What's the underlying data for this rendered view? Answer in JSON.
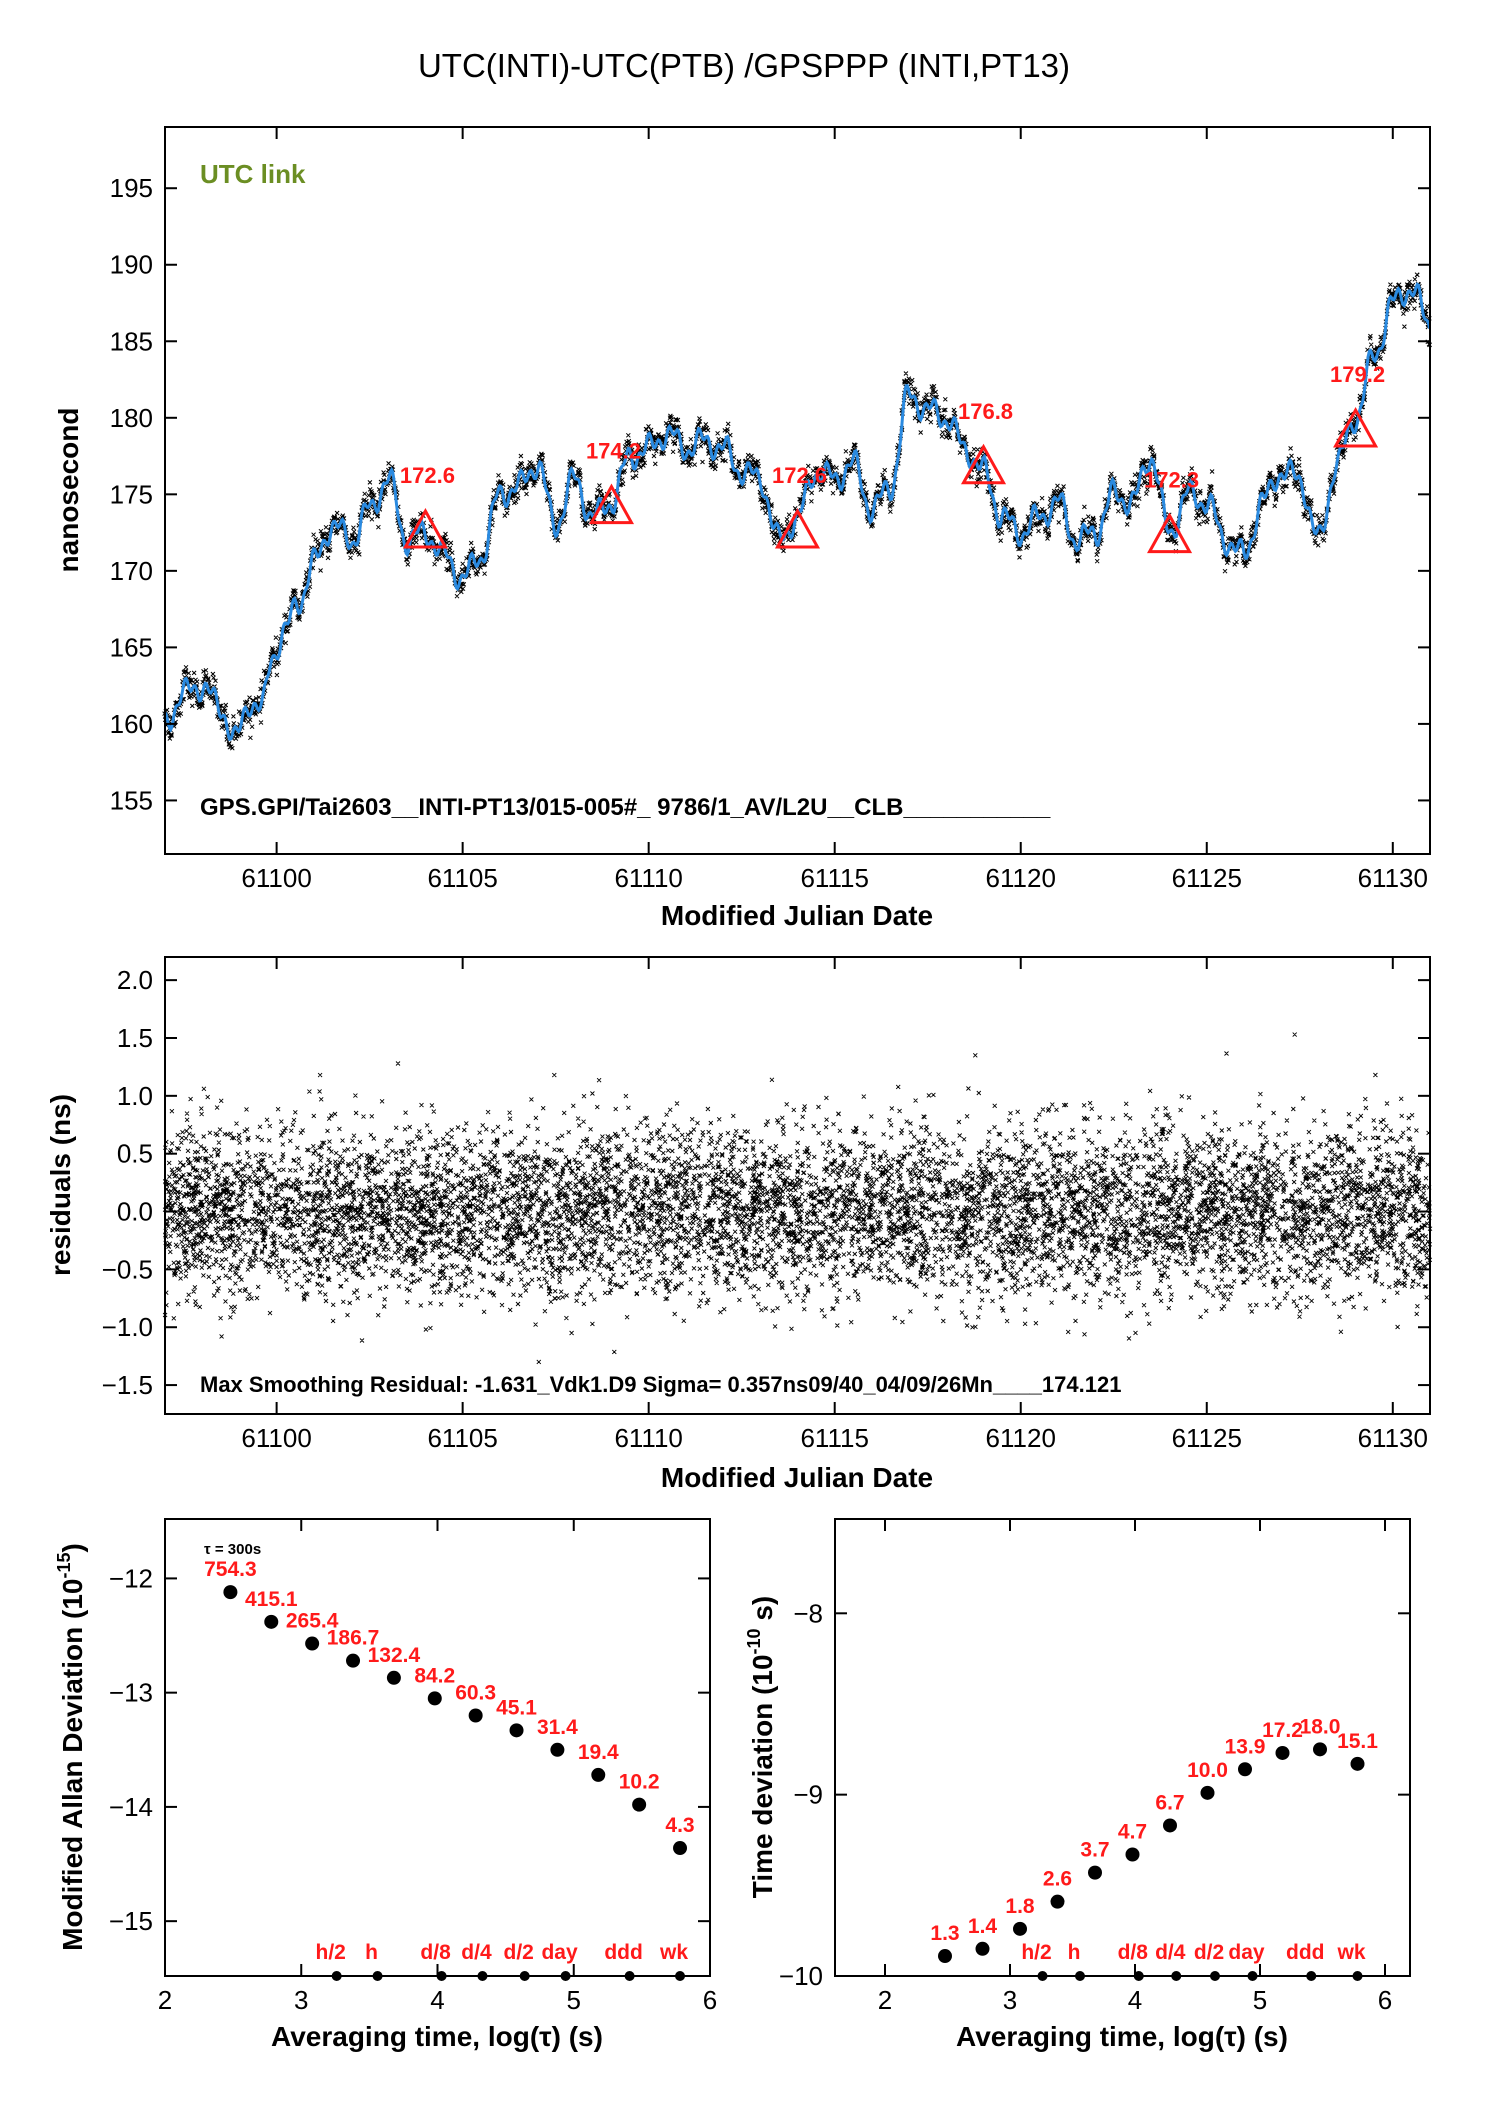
{
  "title": "UTC(INTI)-UTC(PTB)  /GPSPPP  (INTI,PT13)",
  "chart_data": [
    {
      "id": "timeseries",
      "type": "line",
      "label": "UTC link",
      "xlabel": "Modified Julian Date",
      "ylabel": "nanosecond",
      "xlim": [
        61097,
        61131
      ],
      "ylim": [
        151.5,
        199
      ],
      "xticks": [
        61100,
        61105,
        61110,
        61115,
        61120,
        61125,
        61130
      ],
      "yticks": [
        155,
        160,
        165,
        170,
        175,
        180,
        185,
        190,
        195
      ],
      "annotation": "GPS.GPI/Tai2603__INTI-PT13/015-005#_  9786/1_AV/L2U__CLB___________",
      "smoothed_line_color": "#2a8ae0",
      "raw_point_color": "#000000",
      "marker_color": "#ff1a1a",
      "series": [
        {
          "name": "smoothed",
          "x": [
            61097.0,
            61097.5,
            61098.0,
            61098.5,
            61098.9,
            61099.3,
            61099.6,
            61099.9,
            61100.2,
            61100.6,
            61101.0,
            61101.5,
            61102.0,
            61102.5,
            61103.0,
            61103.5,
            61104.0,
            61104.5,
            61105.0,
            61105.5,
            61106.0,
            61106.5,
            61107.0,
            61107.5,
            61108.0,
            61108.5,
            61109.0,
            61109.5,
            61110.0,
            61110.5,
            61111.0,
            61111.5,
            61112.0,
            61112.5,
            61113.0,
            61113.5,
            61114.0,
            61114.5,
            61115.0,
            61115.5,
            61116.0,
            61116.5,
            61117.0,
            61117.5,
            61118.0,
            61118.5,
            61119.0,
            61119.5,
            61120.0,
            61120.5,
            61121.0,
            61121.5,
            61122.0,
            61122.5,
            61123.0,
            61123.5,
            61124.0,
            61124.5,
            61125.0,
            61125.5,
            61126.0,
            61126.5,
            61127.0,
            61127.5,
            61128.0,
            61128.5,
            61129.0,
            61129.5,
            61130.0,
            61130.5,
            61131.0
          ],
          "y": [
            160.0,
            162.0,
            162.5,
            161.0,
            159.0,
            161.5,
            161.0,
            164.5,
            166.0,
            168.0,
            170.5,
            173.0,
            172.0,
            174.0,
            176.0,
            172.0,
            172.5,
            171.0,
            169.5,
            171.0,
            175.0,
            175.5,
            177.0,
            173.0,
            176.0,
            173.5,
            174.5,
            177.5,
            178.0,
            179.0,
            178.0,
            178.5,
            178.0,
            176.5,
            176.0,
            172.0,
            173.5,
            176.5,
            176.0,
            177.0,
            174.0,
            175.5,
            181.5,
            180.5,
            180.0,
            178.0,
            176.5,
            173.5,
            172.5,
            173.5,
            174.5,
            172.0,
            172.5,
            175.0,
            174.5,
            177.5,
            172.5,
            175.0,
            174.5,
            172.0,
            171.0,
            174.5,
            176.5,
            176.0,
            172.0,
            177.0,
            180.0,
            184.0,
            187.5,
            188.5,
            186.0
          ]
        },
        {
          "name": "markers",
          "x": [
            61104,
            61109,
            61114,
            61119,
            61124,
            61129
          ],
          "y": [
            172.6,
            174.2,
            172.6,
            176.8,
            172.3,
            179.2
          ],
          "labels": [
            "172.6",
            "174.2",
            "172.6",
            "176.8",
            "172.3",
            "179.2"
          ]
        }
      ]
    },
    {
      "id": "residuals",
      "type": "scatter",
      "xlabel": "Modified Julian Date",
      "ylabel": "residuals (ns)",
      "xlim": [
        61097,
        61131
      ],
      "ylim": [
        -1.75,
        2.2
      ],
      "xticks": [
        61100,
        61105,
        61110,
        61115,
        61120,
        61125,
        61130
      ],
      "yticks": [
        -1.5,
        -1.0,
        -0.5,
        0.0,
        0.5,
        1.0,
        1.5,
        2.0
      ],
      "ytick_labels": [
        "−1.5",
        "−1.0",
        "−0.5",
        "0.0",
        "0.5",
        "1.0",
        "1.5",
        "2.0"
      ],
      "annotation": "Max Smoothing Residual: -1.631_Vdk1.D9  Sigma= 0.357ns09/40_04/09/26Mn____174.121",
      "sigma_ns": 0.357,
      "max_residual_ns": -1.631
    },
    {
      "id": "mdev",
      "type": "scatter",
      "xlabel": "Averaging time, log(τ) (s)",
      "ylabel_main": "Modified Allan Deviation (10",
      "ylabel_exp": "-15",
      "ylabel_end": ")",
      "xlim": [
        2,
        6
      ],
      "ylim": [
        -15.48,
        -11.48
      ],
      "xticks": [
        2,
        3,
        4,
        5,
        6
      ],
      "yticks": [
        -12,
        -13,
        -14,
        -15
      ],
      "tau0": "τ = 300s",
      "x": [
        2.48,
        2.78,
        3.08,
        3.38,
        3.68,
        3.98,
        4.28,
        4.58,
        4.88,
        5.18,
        5.48,
        5.78
      ],
      "y": [
        -12.12,
        -12.38,
        -12.57,
        -12.72,
        -12.87,
        -13.05,
        -13.2,
        -13.33,
        -13.5,
        -13.72,
        -13.98,
        -14.36
      ],
      "values": [
        "754.3",
        "415.1",
        "265.4",
        "186.7",
        "132.4",
        "84.2",
        "60.3",
        "45.1",
        "31.4",
        "19.4",
        "10.2",
        "4.3"
      ],
      "markers": [
        {
          "label": "h/2",
          "x": 3.26
        },
        {
          "label": "h",
          "x": 3.56
        },
        {
          "label": "d/8",
          "x": 4.03
        },
        {
          "label": "d/4",
          "x": 4.33
        },
        {
          "label": "d/2",
          "x": 4.64
        },
        {
          "label": "day",
          "x": 4.94
        },
        {
          "label": "ddd",
          "x": 5.41
        },
        {
          "label": "wk",
          "x": 5.78
        }
      ]
    },
    {
      "id": "tdev",
      "type": "scatter",
      "xlabel": "Averaging time, log(τ) (s)",
      "ylabel_main": "Time deviation (10",
      "ylabel_exp": "-10",
      "ylabel_end": " s)",
      "xlim": [
        1.6,
        6.2
      ],
      "ylim": [
        -10.0,
        -7.48
      ],
      "xticks": [
        2,
        3,
        4,
        5,
        6
      ],
      "yticks": [
        -8,
        -9,
        -10
      ],
      "x": [
        2.48,
        2.78,
        3.08,
        3.38,
        3.68,
        3.98,
        4.28,
        4.58,
        4.88,
        5.18,
        5.48,
        5.78
      ],
      "y": [
        -9.89,
        -9.85,
        -9.74,
        -9.59,
        -9.43,
        -9.33,
        -9.17,
        -8.99,
        -8.86,
        -8.77,
        -8.75,
        -8.83
      ],
      "values": [
        "1.3",
        "1.4",
        "1.8",
        "2.6",
        "3.7",
        "4.7",
        "6.7",
        "10.0",
        "13.9",
        "17.2",
        "18.0",
        "15.1"
      ],
      "markers": [
        {
          "label": "h/2",
          "x": 3.26
        },
        {
          "label": "h",
          "x": 3.56
        },
        {
          "label": "d/8",
          "x": 4.03
        },
        {
          "label": "d/4",
          "x": 4.33
        },
        {
          "label": "d/2",
          "x": 4.64
        },
        {
          "label": "day",
          "x": 4.94
        },
        {
          "label": "ddd",
          "x": 5.41
        },
        {
          "label": "wk",
          "x": 5.78
        }
      ]
    }
  ]
}
